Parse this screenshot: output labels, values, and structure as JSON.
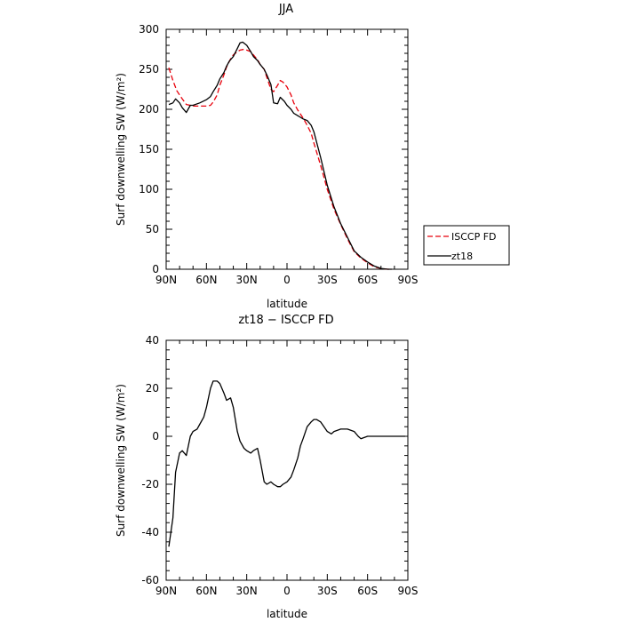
{
  "chart_data": [
    {
      "type": "line",
      "title": "JJA",
      "xlabel": "latitude",
      "ylabel": "Surf downwelling SW (W/m²)",
      "xlim": [
        90,
        -90
      ],
      "ylim": [
        0,
        300
      ],
      "x_ticks": [
        90,
        60,
        30,
        0,
        -30,
        -60,
        -90
      ],
      "x_tick_labels": [
        "90N",
        "60N",
        "30N",
        "0",
        "30S",
        "60S",
        "90S"
      ],
      "y_ticks": [
        0,
        50,
        100,
        150,
        200,
        250,
        300
      ],
      "legend_position": "right",
      "series": [
        {
          "name": "ISCCP FD",
          "color": "#e8000b",
          "style": "dashed",
          "x": [
            88,
            85,
            82,
            78,
            75,
            72,
            70,
            65,
            60,
            57,
            55,
            52,
            50,
            47,
            45,
            42,
            40,
            37,
            35,
            32,
            30,
            27,
            25,
            22,
            20,
            17,
            15,
            12,
            10,
            7,
            5,
            3,
            0,
            -3,
            -5,
            -8,
            -12,
            -15,
            -18,
            -20,
            -25,
            -30,
            -35,
            -40,
            -45,
            -50,
            -55,
            -60,
            -65,
            -70,
            -75,
            -78
          ],
          "y": [
            252,
            236,
            223,
            213,
            206,
            205,
            204,
            204,
            204,
            205,
            209,
            218,
            230,
            243,
            253,
            263,
            268,
            272,
            274,
            275,
            274,
            272,
            268,
            262,
            256,
            250,
            240,
            225,
            222,
            230,
            236,
            234,
            228,
            218,
            208,
            199,
            189,
            180,
            170,
            158,
            130,
            100,
            75,
            56,
            38,
            22,
            14,
            8,
            3,
            1,
            0,
            0
          ]
        },
        {
          "name": "zt18",
          "color": "#000000",
          "style": "solid",
          "x": [
            88,
            85,
            83,
            80,
            78,
            75,
            72,
            70,
            65,
            60,
            57,
            55,
            52,
            50,
            47,
            45,
            43,
            40,
            37,
            35,
            33,
            30,
            27,
            25,
            22,
            20,
            17,
            15,
            12,
            10,
            7,
            5,
            2,
            0,
            -3,
            -5,
            -8,
            -10,
            -12,
            -15,
            -18,
            -20,
            -25,
            -30,
            -35,
            -40,
            -45,
            -50,
            -55,
            -60,
            -65,
            -70,
            -75,
            -78
          ],
          "y": [
            206,
            208,
            213,
            208,
            202,
            196,
            205,
            205,
            208,
            212,
            216,
            222,
            230,
            238,
            246,
            254,
            260,
            266,
            276,
            283,
            284,
            280,
            272,
            266,
            261,
            256,
            250,
            243,
            231,
            208,
            207,
            215,
            210,
            205,
            200,
            195,
            192,
            190,
            188,
            186,
            180,
            172,
            140,
            105,
            78,
            57,
            40,
            23,
            15,
            9,
            4,
            1,
            0,
            0
          ]
        }
      ]
    },
    {
      "type": "line",
      "title": "zt18 − ISCCP FD",
      "xlabel": "latitude",
      "ylabel": "Surf downwelling SW (W/m²)",
      "xlim": [
        90,
        -90
      ],
      "ylim": [
        -60,
        40
      ],
      "x_ticks": [
        90,
        60,
        30,
        0,
        -30,
        -60,
        -90
      ],
      "x_tick_labels": [
        "90N",
        "60N",
        "30N",
        "0",
        "30S",
        "60S",
        "90S"
      ],
      "y_ticks": [
        -60,
        -40,
        -20,
        0,
        20,
        40
      ],
      "series": [
        {
          "color": "#000000",
          "style": "solid",
          "x": [
            88,
            85,
            83,
            80,
            78,
            75,
            72,
            70,
            67,
            65,
            62,
            60,
            57,
            55,
            52,
            50,
            47,
            45,
            42,
            40,
            37,
            35,
            32,
            30,
            27,
            25,
            22,
            20,
            17,
            15,
            12,
            10,
            7,
            5,
            3,
            0,
            -3,
            -5,
            -8,
            -10,
            -12,
            -15,
            -18,
            -20,
            -22,
            -25,
            -30,
            -33,
            -35,
            -40,
            -45,
            -50,
            -53,
            -55,
            -60,
            -65,
            -70,
            -75,
            -80,
            -85,
            -88
          ],
          "y": [
            -46,
            -34,
            -15,
            -7,
            -6,
            -8,
            0,
            2,
            3,
            5,
            8,
            12,
            20,
            23,
            23,
            22,
            18,
            15,
            16,
            12,
            2,
            -2,
            -5,
            -6,
            -7,
            -6,
            -5,
            -10,
            -19,
            -20,
            -19,
            -20,
            -21,
            -21,
            -20,
            -19,
            -17,
            -14,
            -9,
            -4,
            -1,
            4,
            6,
            7,
            7,
            6,
            2,
            1,
            2,
            3,
            3,
            2,
            0,
            -1,
            0,
            0,
            0,
            0,
            0,
            0,
            0
          ]
        }
      ]
    }
  ]
}
